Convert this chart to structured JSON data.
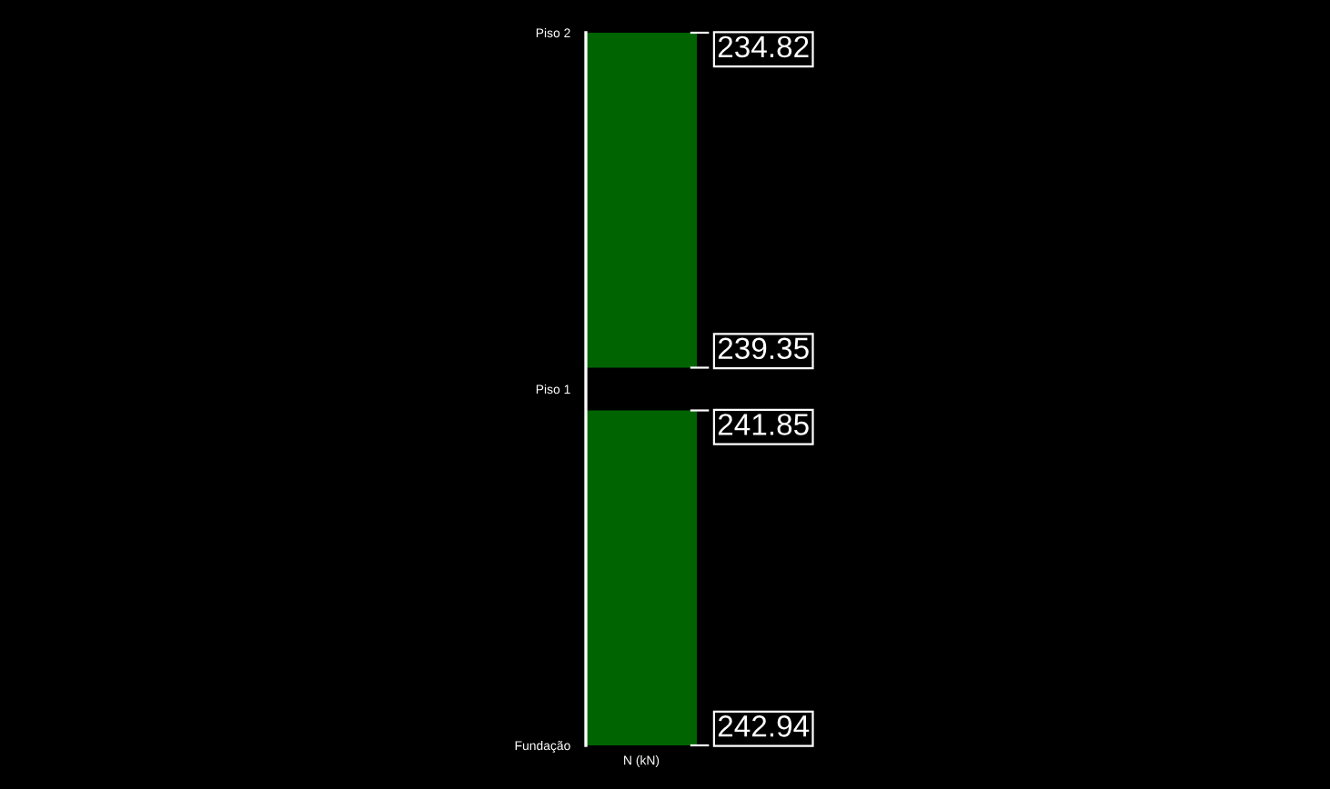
{
  "chart_data": {
    "type": "other",
    "xlabel": "N (kN)",
    "categories": [
      "Piso 2",
      "Piso 1",
      "Fundação"
    ],
    "series": [
      {
        "color": "#006400",
        "values": [
          234.82,
          239.35,
          null
        ]
      },
      {
        "color": "#006400",
        "values": [
          null,
          241.85,
          242.94
        ]
      }
    ],
    "data_labels": true
  }
}
